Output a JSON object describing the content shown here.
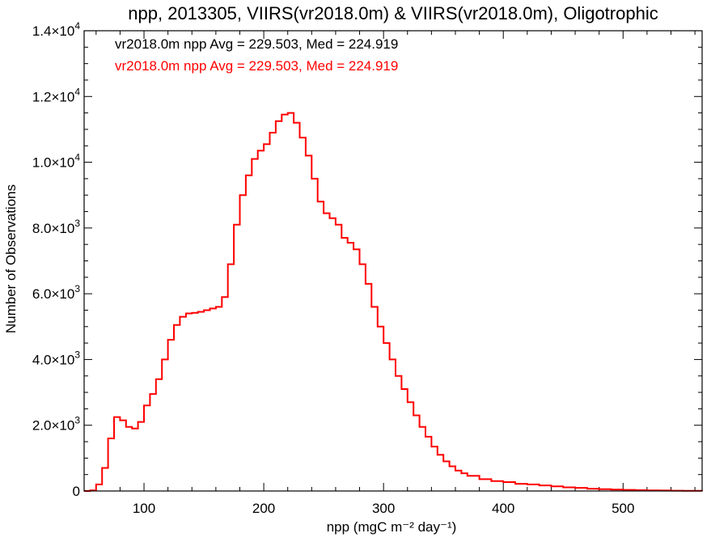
{
  "chart_data": {
    "type": "histogram-step",
    "title": "npp, 2013305, VIIRS(vr2018.0m) & VIIRS(vr2018.0m), Oligotrophic",
    "xlabel": "npp (mgC m⁻² day⁻¹)",
    "ylabel": "Number of Observations",
    "xlim": [
      50,
      566
    ],
    "ylim": [
      0,
      14000
    ],
    "x_ticks": [
      {
        "value": 100,
        "label": "100"
      },
      {
        "value": 200,
        "label": "200"
      },
      {
        "value": 300,
        "label": "300"
      },
      {
        "value": 400,
        "label": "400"
      },
      {
        "value": 500,
        "label": "500"
      }
    ],
    "y_ticks": [
      {
        "value": 0,
        "mant": "0",
        "exp": ""
      },
      {
        "value": 2000,
        "mant": "2.0×10",
        "exp": "3"
      },
      {
        "value": 4000,
        "mant": "4.0×10",
        "exp": "3"
      },
      {
        "value": 6000,
        "mant": "6.0×10",
        "exp": "3"
      },
      {
        "value": 8000,
        "mant": "8.0×10",
        "exp": "3"
      },
      {
        "value": 10000,
        "mant": "1.0×10",
        "exp": "4"
      },
      {
        "value": 12000,
        "mant": "1.2×10",
        "exp": "4"
      },
      {
        "value": 14000,
        "mant": "1.4×10",
        "exp": "4"
      }
    ],
    "stats": [
      {
        "text": "vr2018.0m npp Avg = 229.503, Med = 224.919",
        "color": "#000000"
      },
      {
        "text": "vr2018.0m npp Avg = 229.503, Med = 224.919",
        "color": "#ff0000"
      }
    ],
    "series": [
      {
        "color": "#ff0000",
        "x": [
          50,
          55,
          60,
          65,
          70,
          75,
          80,
          85,
          90,
          95,
          100,
          105,
          110,
          115,
          120,
          125,
          130,
          135,
          140,
          145,
          150,
          155,
          160,
          165,
          170,
          175,
          180,
          185,
          190,
          195,
          200,
          205,
          210,
          215,
          220,
          225,
          230,
          235,
          240,
          245,
          250,
          255,
          260,
          265,
          270,
          275,
          280,
          285,
          290,
          295,
          300,
          305,
          310,
          315,
          320,
          325,
          330,
          335,
          340,
          345,
          350,
          355,
          360,
          365,
          370,
          380,
          390,
          400,
          410,
          420,
          430,
          440,
          450,
          460,
          470,
          480,
          490,
          500,
          510,
          520,
          530,
          540,
          550,
          560,
          566
        ],
        "values": [
          0,
          20,
          200,
          700,
          1600,
          2250,
          2150,
          1950,
          1900,
          2100,
          2600,
          2950,
          3400,
          4000,
          4600,
          5050,
          5300,
          5400,
          5420,
          5450,
          5500,
          5550,
          5600,
          5900,
          6900,
          8100,
          9000,
          9600,
          10100,
          10350,
          10550,
          10900,
          11250,
          11450,
          11500,
          11200,
          10750,
          10200,
          9500,
          8800,
          8450,
          8300,
          8100,
          7700,
          7550,
          7350,
          6900,
          6300,
          5600,
          5000,
          4500,
          4000,
          3500,
          3100,
          2700,
          2300,
          1950,
          1650,
          1350,
          1100,
          900,
          750,
          620,
          540,
          460,
          360,
          300,
          270,
          220,
          200,
          170,
          140,
          110,
          95,
          70,
          55,
          45,
          35,
          25,
          18,
          15,
          10,
          8,
          5,
          3
        ]
      }
    ]
  }
}
